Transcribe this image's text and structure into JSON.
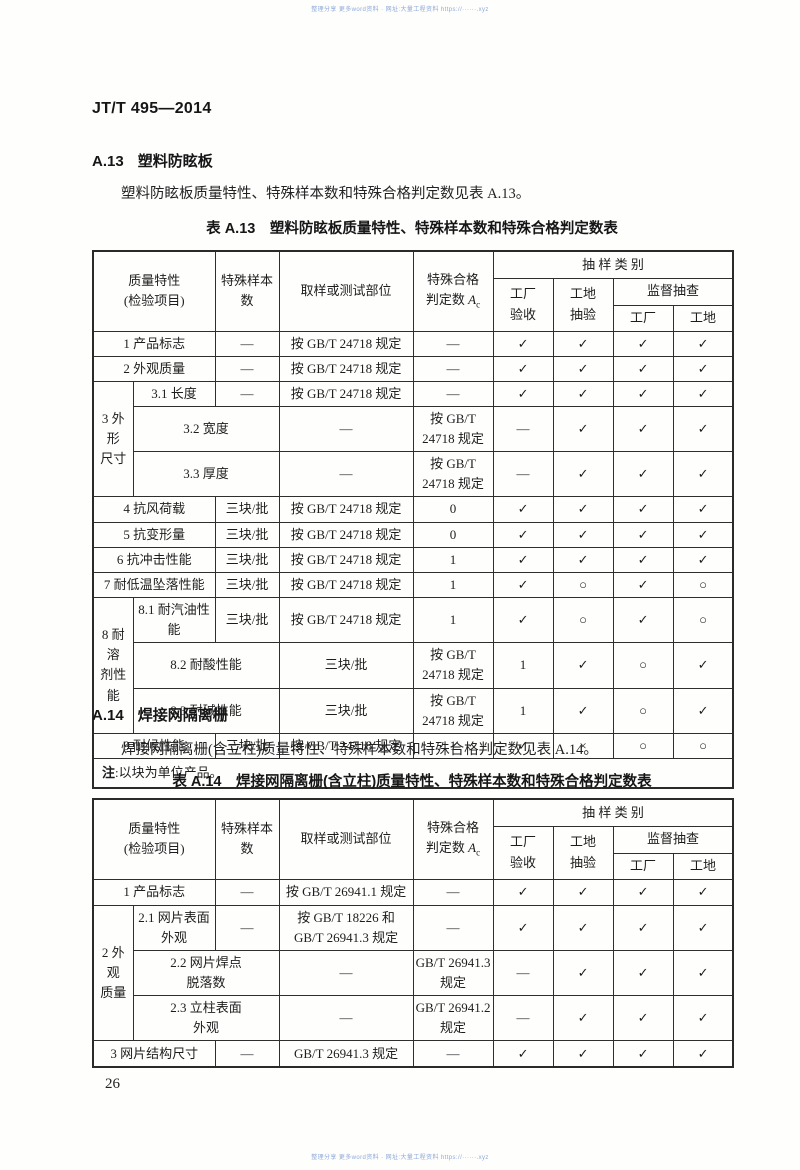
{
  "document": {
    "standard_number": "JT/T 495—2014",
    "page_number": "26",
    "watermark_color": "#8da9d8",
    "watermark_text": "整理分享 更多word资料 · 网址:大量工程资料 https://······.xyz"
  },
  "section_a13": {
    "heading_number": "A.13",
    "heading_title": "塑料防眩板",
    "paragraph": "塑料防眩板质量特性、特殊样本数和特殊合格判定数见表 A.13。",
    "table_caption": "表 A.13　塑料防眩板质量特性、特殊样本数和特殊合格判定数表"
  },
  "section_a14": {
    "heading_number": "A.14",
    "heading_title": "焊接网隔离栅",
    "paragraph": "焊接网隔离栅(含立柱)质量特性、特殊样本数和特殊合格判定数见表 A.14。",
    "table_caption": "表 A.14　焊接网隔离栅(含立柱)质量特性、特殊样本数和特殊合格判定数表"
  },
  "table_header": {
    "quality_line1": "质量特性",
    "quality_line2": "(检验项目)",
    "samples": "特殊样本数",
    "method": "取样或测试部位",
    "accept_line1": "特殊合格",
    "accept_line2": "判定数 ",
    "accept_symbol": "A",
    "accept_subscript": "c",
    "sampling_category": "抽 样 类 别",
    "factory_line1": "工厂",
    "factory_line2": "验收",
    "site_line1": "工地",
    "site_line2": "抽验",
    "supervision": "监督抽查",
    "sup_factory": "工厂",
    "sup_site": "工地"
  },
  "table_a13": {
    "rows": [
      {
        "label": "1 产品标志",
        "samples": "—",
        "method": "按 GB/T 24718 规定",
        "ac": "—",
        "marks": [
          "✓",
          "✓",
          "✓",
          "✓"
        ]
      },
      {
        "label": "2 外观质量",
        "samples": "—",
        "method": "按 GB/T 24718 规定",
        "ac": "—",
        "marks": [
          "✓",
          "✓",
          "✓",
          "✓"
        ]
      },
      {
        "group": "3 外形\n尺寸",
        "group_span": 3,
        "label": "3.1 长度",
        "samples": "—",
        "method": "按 GB/T 24718 规定",
        "ac": "—",
        "marks": [
          "✓",
          "✓",
          "✓",
          "✓"
        ]
      },
      {
        "label": "3.2 宽度",
        "samples": "—",
        "method": "按 GB/T 24718 规定",
        "ac": "—",
        "marks": [
          "✓",
          "✓",
          "✓",
          "✓"
        ]
      },
      {
        "label": "3.3 厚度",
        "samples": "—",
        "method": "按 GB/T 24718 规定",
        "ac": "—",
        "marks": [
          "✓",
          "✓",
          "✓",
          "✓"
        ]
      },
      {
        "label": "4 抗风荷载",
        "samples": "三块/批",
        "method": "按 GB/T 24718 规定",
        "ac": "0",
        "marks": [
          "✓",
          "✓",
          "✓",
          "✓"
        ]
      },
      {
        "label": "5 抗变形量",
        "samples": "三块/批",
        "method": "按 GB/T 24718 规定",
        "ac": "0",
        "marks": [
          "✓",
          "✓",
          "✓",
          "✓"
        ]
      },
      {
        "label": "6 抗冲击性能",
        "samples": "三块/批",
        "method": "按 GB/T 24718 规定",
        "ac": "1",
        "marks": [
          "✓",
          "✓",
          "✓",
          "✓"
        ]
      },
      {
        "label": "7 耐低温坠落性能",
        "samples": "三块/批",
        "method": "按 GB/T 24718 规定",
        "ac": "1",
        "marks": [
          "✓",
          "○",
          "✓",
          "○"
        ]
      },
      {
        "group": "8 耐溶\n剂性能",
        "group_span": 3,
        "label": "8.1 耐汽油性能",
        "samples": "三块/批",
        "method": "按 GB/T 24718 规定",
        "ac": "1",
        "marks": [
          "✓",
          "○",
          "✓",
          "○"
        ]
      },
      {
        "label": "8.2 耐酸性能",
        "samples": "三块/批",
        "method": "按 GB/T 24718 规定",
        "ac": "1",
        "marks": [
          "✓",
          "○",
          "✓",
          "○"
        ]
      },
      {
        "label": "8.3 耐碱性能",
        "samples": "三块/批",
        "method": "按 GB/T 24718 规定",
        "ac": "1",
        "marks": [
          "✓",
          "○",
          "✓",
          "○"
        ]
      },
      {
        "label": "9 耐候性能",
        "samples": "三块/批",
        "method": "按 GB/T 24718 规定",
        "ac": "1",
        "marks": [
          "✓",
          "×",
          "○",
          "○"
        ]
      }
    ],
    "note_prefix": "注",
    "note_text": ":以块为单位产品。"
  },
  "table_a14": {
    "rows": [
      {
        "label": "1 产品标志",
        "samples": "—",
        "method": "按 GB/T 26941.1 规定",
        "ac": "—",
        "marks": [
          "✓",
          "✓",
          "✓",
          "✓"
        ]
      },
      {
        "group": "2 外观\n质量",
        "group_span": 3,
        "label": "2.1 网片表面\n外观",
        "samples": "—",
        "method": "按 GB/T 18226 和\nGB/T 26941.3 规定",
        "ac": "—",
        "marks": [
          "✓",
          "✓",
          "✓",
          "✓"
        ]
      },
      {
        "label": "2.2 网片焊点\n脱落数",
        "samples": "—",
        "method": "GB/T 26941.3 规定",
        "ac": "—",
        "marks": [
          "✓",
          "✓",
          "✓",
          "✓"
        ]
      },
      {
        "label": "2.3 立柱表面\n外观",
        "samples": "—",
        "method": "GB/T 26941.2 规定",
        "ac": "—",
        "marks": [
          "✓",
          "✓",
          "✓",
          "✓"
        ]
      },
      {
        "label": "3 网片结构尺寸",
        "samples": "—",
        "method": "GB/T 26941.3 规定",
        "ac": "—",
        "marks": [
          "✓",
          "✓",
          "✓",
          "✓"
        ]
      }
    ]
  }
}
